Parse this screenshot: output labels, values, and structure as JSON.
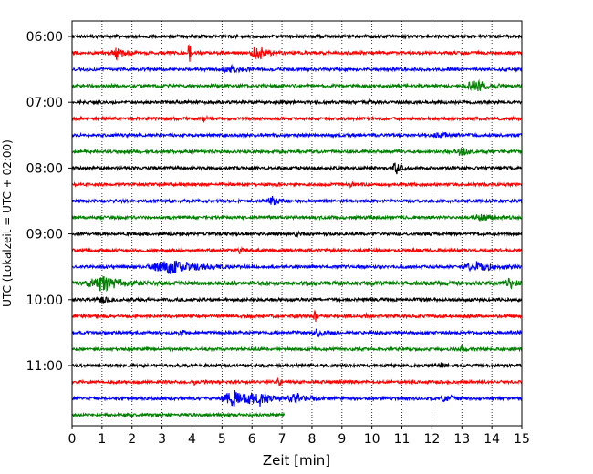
{
  "chart_data": {
    "type": "line",
    "title": "",
    "xlabel": "Zeit  [min]",
    "ylabel": "UTC (Lokalzeit = UTC + 02:00)",
    "xlim": [
      0,
      15
    ],
    "x_ticks": [
      "0",
      "1",
      "2",
      "3",
      "4",
      "5",
      "6",
      "7",
      "8",
      "9",
      "10",
      "11",
      "12",
      "13",
      "14",
      "15"
    ],
    "y_tick_labels": [
      "06:00",
      "07:00",
      "08:00",
      "09:00",
      "10:00",
      "11:00"
    ],
    "grid": "vertical dotted at each minute",
    "trace_interval_minutes": 15,
    "color_cycle": [
      "#000000",
      "#ff0000",
      "#0000ff",
      "#008000"
    ],
    "series": [
      {
        "start": "06:00",
        "end_min": 15,
        "noise": 1.0,
        "events": []
      },
      {
        "start": "06:15",
        "end_min": 15,
        "noise": 1.0,
        "events": [
          {
            "t": 1.5,
            "amp": 7,
            "dur": 0.25
          },
          {
            "t": 3.9,
            "amp": 16,
            "dur": 0.05
          },
          {
            "t": 6.2,
            "amp": 8,
            "dur": 0.3
          }
        ]
      },
      {
        "start": "06:30",
        "end_min": 15,
        "noise": 1.0,
        "events": [
          {
            "t": 5.3,
            "amp": 3,
            "dur": 0.4
          }
        ]
      },
      {
        "start": "06:45",
        "end_min": 15,
        "noise": 1.0,
        "events": [
          {
            "t": 13.5,
            "amp": 5,
            "dur": 0.5
          }
        ]
      },
      {
        "start": "07:00",
        "end_min": 15,
        "noise": 1.0,
        "events": [
          {
            "t": 9.9,
            "amp": 3,
            "dur": 0.05
          }
        ]
      },
      {
        "start": "07:15",
        "end_min": 15,
        "noise": 1.0,
        "events": [
          {
            "t": 4.4,
            "amp": 3,
            "dur": 0.1
          }
        ]
      },
      {
        "start": "07:30",
        "end_min": 15,
        "noise": 1.0,
        "events": [
          {
            "t": 12.3,
            "amp": 2,
            "dur": 0.3
          }
        ]
      },
      {
        "start": "07:45",
        "end_min": 15,
        "noise": 1.0,
        "events": [
          {
            "t": 13.0,
            "amp": 4,
            "dur": 0.3
          }
        ]
      },
      {
        "start": "08:00",
        "end_min": 15,
        "noise": 1.0,
        "events": [
          {
            "t": 10.8,
            "amp": 7,
            "dur": 0.15
          }
        ]
      },
      {
        "start": "08:15",
        "end_min": 15,
        "noise": 1.0,
        "events": [
          {
            "t": 9.3,
            "amp": 2,
            "dur": 0.1
          }
        ]
      },
      {
        "start": "08:30",
        "end_min": 15,
        "noise": 1.0,
        "events": [
          {
            "t": 6.7,
            "amp": 5,
            "dur": 0.2
          }
        ]
      },
      {
        "start": "08:45",
        "end_min": 15,
        "noise": 1.0,
        "events": [
          {
            "t": 13.7,
            "amp": 4,
            "dur": 0.4
          }
        ]
      },
      {
        "start": "09:00",
        "end_min": 15,
        "noise": 1.0,
        "events": [
          {
            "t": 7.5,
            "amp": 3,
            "dur": 0.1
          }
        ]
      },
      {
        "start": "09:15",
        "end_min": 15,
        "noise": 1.0,
        "events": [
          {
            "t": 5.6,
            "amp": 3,
            "dur": 0.1
          }
        ]
      },
      {
        "start": "09:30",
        "end_min": 15,
        "noise": 1.0,
        "events": [
          {
            "t": 3.3,
            "amp": 7,
            "dur": 0.9
          },
          {
            "t": 13.5,
            "amp": 5,
            "dur": 0.5
          }
        ]
      },
      {
        "start": "09:45",
        "end_min": 15,
        "noise": 1.3,
        "events": [
          {
            "t": 1.0,
            "amp": 8,
            "dur": 0.6
          },
          {
            "t": 14.6,
            "amp": 5,
            "dur": 0.2
          }
        ]
      },
      {
        "start": "10:00",
        "end_min": 15,
        "noise": 1.0,
        "events": [
          {
            "t": 1.0,
            "amp": 3,
            "dur": 0.2
          }
        ]
      },
      {
        "start": "10:15",
        "end_min": 15,
        "noise": 1.0,
        "events": [
          {
            "t": 8.1,
            "amp": 12,
            "dur": 0.05
          },
          {
            "t": 9.8,
            "amp": 3,
            "dur": 0.05
          }
        ]
      },
      {
        "start": "10:30",
        "end_min": 15,
        "noise": 1.0,
        "events": [
          {
            "t": 3.6,
            "amp": 4,
            "dur": 0.1
          },
          {
            "t": 8.2,
            "amp": 4,
            "dur": 0.2
          }
        ]
      },
      {
        "start": "10:45",
        "end_min": 15,
        "noise": 1.0,
        "events": [
          {
            "t": 13.0,
            "amp": 3,
            "dur": 0.1
          }
        ]
      },
      {
        "start": "11:00",
        "end_min": 15,
        "noise": 1.0,
        "events": [
          {
            "t": 12.3,
            "amp": 2,
            "dur": 0.2
          }
        ]
      },
      {
        "start": "11:15",
        "end_min": 15,
        "noise": 1.0,
        "events": [
          {
            "t": 4.1,
            "amp": 3,
            "dur": 0.1
          },
          {
            "t": 6.9,
            "amp": 3,
            "dur": 0.1
          }
        ]
      },
      {
        "start": "11:30",
        "end_min": 15,
        "noise": 1.0,
        "events": [
          {
            "t": 5.4,
            "amp": 8,
            "dur": 0.5
          },
          {
            "t": 6.2,
            "amp": 8,
            "dur": 0.4
          },
          {
            "t": 7.5,
            "amp": 5,
            "dur": 0.4
          },
          {
            "t": 12.5,
            "amp": 3,
            "dur": 0.3
          }
        ]
      },
      {
        "start": "11:45",
        "end_min": 7.1,
        "noise": 1.0,
        "events": []
      }
    ]
  }
}
